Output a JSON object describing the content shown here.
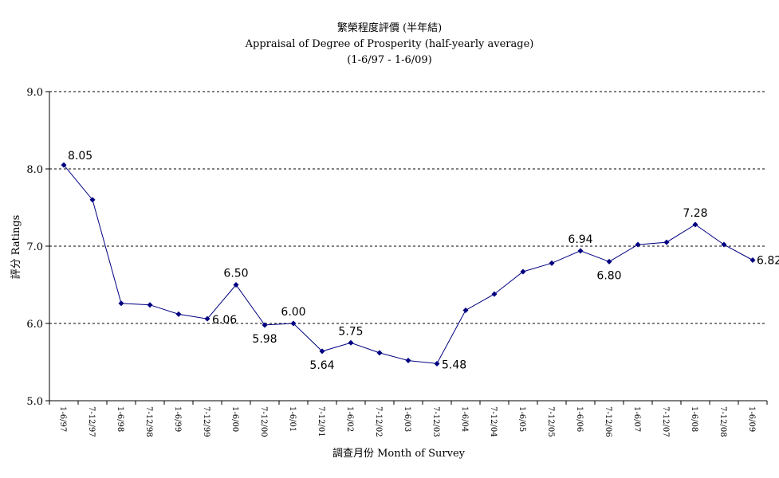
{
  "chart_data": {
    "type": "line",
    "title": "繁榮程度評價 (半年結)",
    "subtitle": "Appraisal of Degree of Prosperity (half-yearly average)",
    "period": "(1-6/97 - 1-6/09)",
    "xlabel": "調查月份 Month of Survey",
    "ylabel": "評分 Ratings",
    "ylim": [
      5.0,
      9.0
    ],
    "yticks": [
      "5.0",
      "6.0",
      "7.0",
      "8.0",
      "9.0"
    ],
    "grid": true,
    "line_color": "#000080",
    "categories": [
      "1-6/97",
      "7-12/97",
      "1-6/98",
      "7-12/98",
      "1-6/99",
      "7-12/99",
      "1-6/00",
      "7-12/00",
      "1-6/01",
      "7-12/01",
      "1-6/02",
      "7-12/02",
      "1-6/03",
      "7-12/03",
      "1-6/04",
      "7-12/04",
      "1-6/05",
      "7-12/05",
      "1-6/06",
      "7-12/06",
      "1-6/07",
      "7-12/07",
      "1-6/08",
      "7-12/08",
      "1-6/09"
    ],
    "values": [
      8.05,
      7.6,
      6.26,
      6.24,
      6.12,
      6.06,
      6.5,
      5.98,
      6.0,
      5.64,
      5.75,
      5.62,
      5.52,
      5.48,
      6.17,
      6.38,
      6.67,
      6.78,
      6.94,
      6.8,
      7.02,
      7.05,
      7.28,
      7.02,
      6.82
    ],
    "data_labels": [
      {
        "index": 0,
        "text": "8.05"
      },
      {
        "index": 5,
        "text": "6.06"
      },
      {
        "index": 6,
        "text": "6.50"
      },
      {
        "index": 7,
        "text": "5.98"
      },
      {
        "index": 8,
        "text": "6.00"
      },
      {
        "index": 9,
        "text": "5.64"
      },
      {
        "index": 10,
        "text": "5.75"
      },
      {
        "index": 13,
        "text": "5.48"
      },
      {
        "index": 18,
        "text": "6.94"
      },
      {
        "index": 19,
        "text": "6.80"
      },
      {
        "index": 22,
        "text": "7.28"
      },
      {
        "index": 24,
        "text": "6.82"
      }
    ]
  }
}
